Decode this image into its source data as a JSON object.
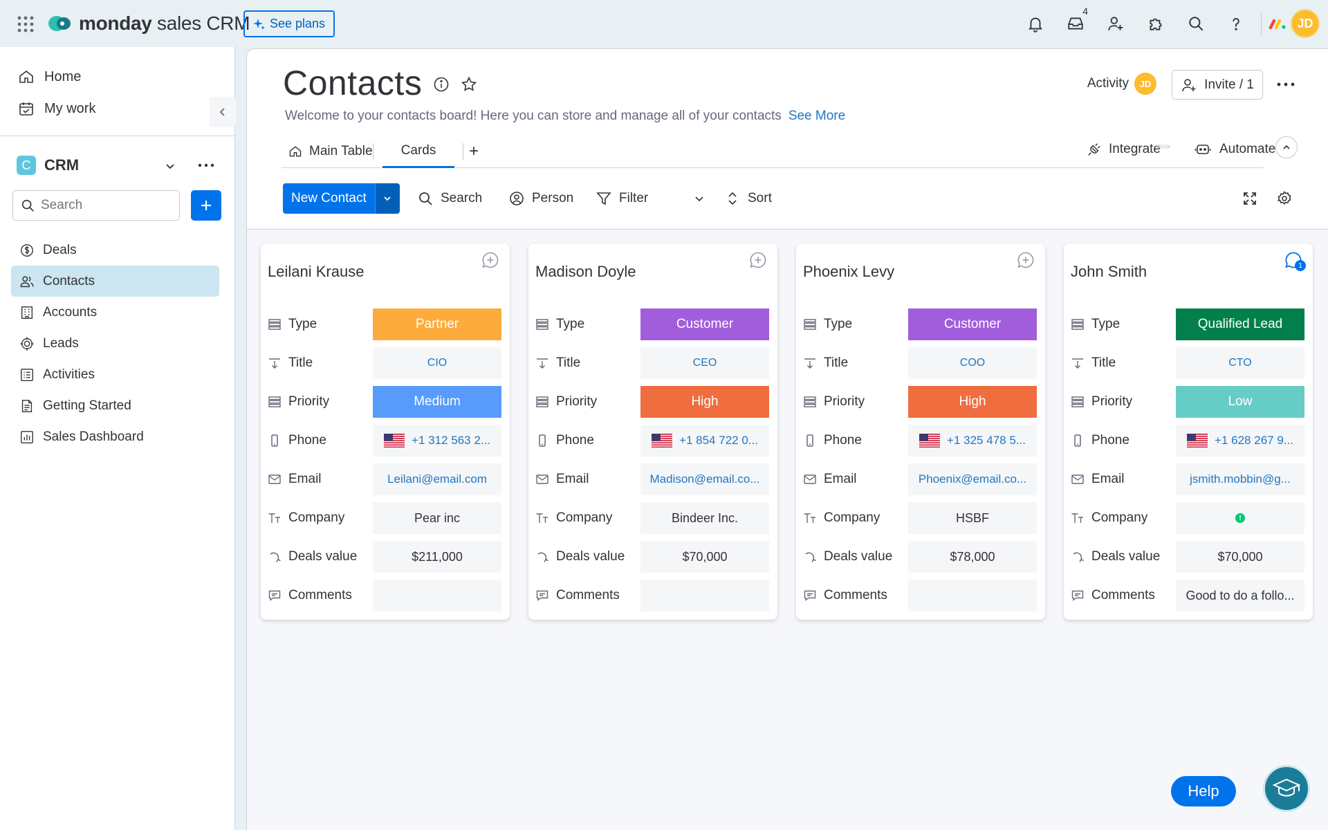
{
  "app": {
    "brand_bold": "monday",
    "brand_rest": " sales CRM",
    "see_plans": "See plans",
    "inbox_count": "4",
    "user_initials": "JD"
  },
  "sidebar": {
    "nav": [
      {
        "label": "Home",
        "icon": "home-icon"
      },
      {
        "label": "My work",
        "icon": "my-work-icon"
      }
    ],
    "workspace": {
      "badge": "C",
      "name": "CRM"
    },
    "search_placeholder": "Search",
    "boards": [
      {
        "label": "Deals",
        "icon": "dollar-icon"
      },
      {
        "label": "Contacts",
        "icon": "contacts-icon",
        "active": true
      },
      {
        "label": "Accounts",
        "icon": "building-icon"
      },
      {
        "label": "Leads",
        "icon": "target-icon"
      },
      {
        "label": "Activities",
        "icon": "activities-icon"
      },
      {
        "label": "Getting Started",
        "icon": "doc-icon"
      },
      {
        "label": "Sales Dashboard",
        "icon": "dashboard-icon"
      }
    ]
  },
  "board": {
    "title": "Contacts",
    "description": "Welcome to your contacts board! Here you can store and manage all of your contacts",
    "see_more": "See More",
    "activity": "Activity",
    "activity_initials": "JD",
    "invite": "Invite / 1",
    "tabs": {
      "main_table": "Main Table",
      "cards": "Cards",
      "add": "+"
    },
    "integrate": "Integrate",
    "automate": "Automate"
  },
  "toolbar": {
    "new_contact": "New Contact",
    "search": "Search",
    "person": "Person",
    "filter": "Filter",
    "sort": "Sort"
  },
  "field_labels": {
    "type": "Type",
    "title": "Title",
    "priority": "Priority",
    "phone": "Phone",
    "email": "Email",
    "company": "Company",
    "deals_value": "Deals value",
    "comments": "Comments"
  },
  "colors": {
    "partner": "#fdab3d",
    "customer": "#a25ddc",
    "qualified_lead": "#037f4c",
    "medium": "#579bfc",
    "high": "#f06d3f",
    "low": "#66ccc6",
    "primary": "#0073ea"
  },
  "cards": [
    {
      "name": "Leilani Krause",
      "type": "Partner",
      "title": "CIO",
      "priority": "Medium",
      "phone": "+1 312 563 2...",
      "email": "Leilani@email.com",
      "company": "Pear inc",
      "deals_value": "$211,000",
      "comments": ""
    },
    {
      "name": "Madison Doyle",
      "type": "Customer",
      "title": "CEO",
      "priority": "High",
      "phone": "+1 854 722 0...",
      "email": "Madison@email.co...",
      "company": "Bindeer Inc.",
      "deals_value": "$70,000",
      "comments": ""
    },
    {
      "name": "Phoenix Levy",
      "type": "Customer",
      "title": "COO",
      "priority": "High",
      "phone": "+1 325 478 5...",
      "email": "Phoenix@email.co...",
      "company": "HSBF",
      "deals_value": "$78,000",
      "comments": ""
    },
    {
      "name": "John Smith",
      "type": "Qualified Lead",
      "title": "CTO",
      "priority": "Low",
      "phone": "+1 628 267 9...",
      "email": "jsmith.mobbin@g...",
      "company": "",
      "deals_value": "$70,000",
      "comments": "Good to do a follo...",
      "chat_count": "1"
    }
  ],
  "help": {
    "label": "Help"
  }
}
